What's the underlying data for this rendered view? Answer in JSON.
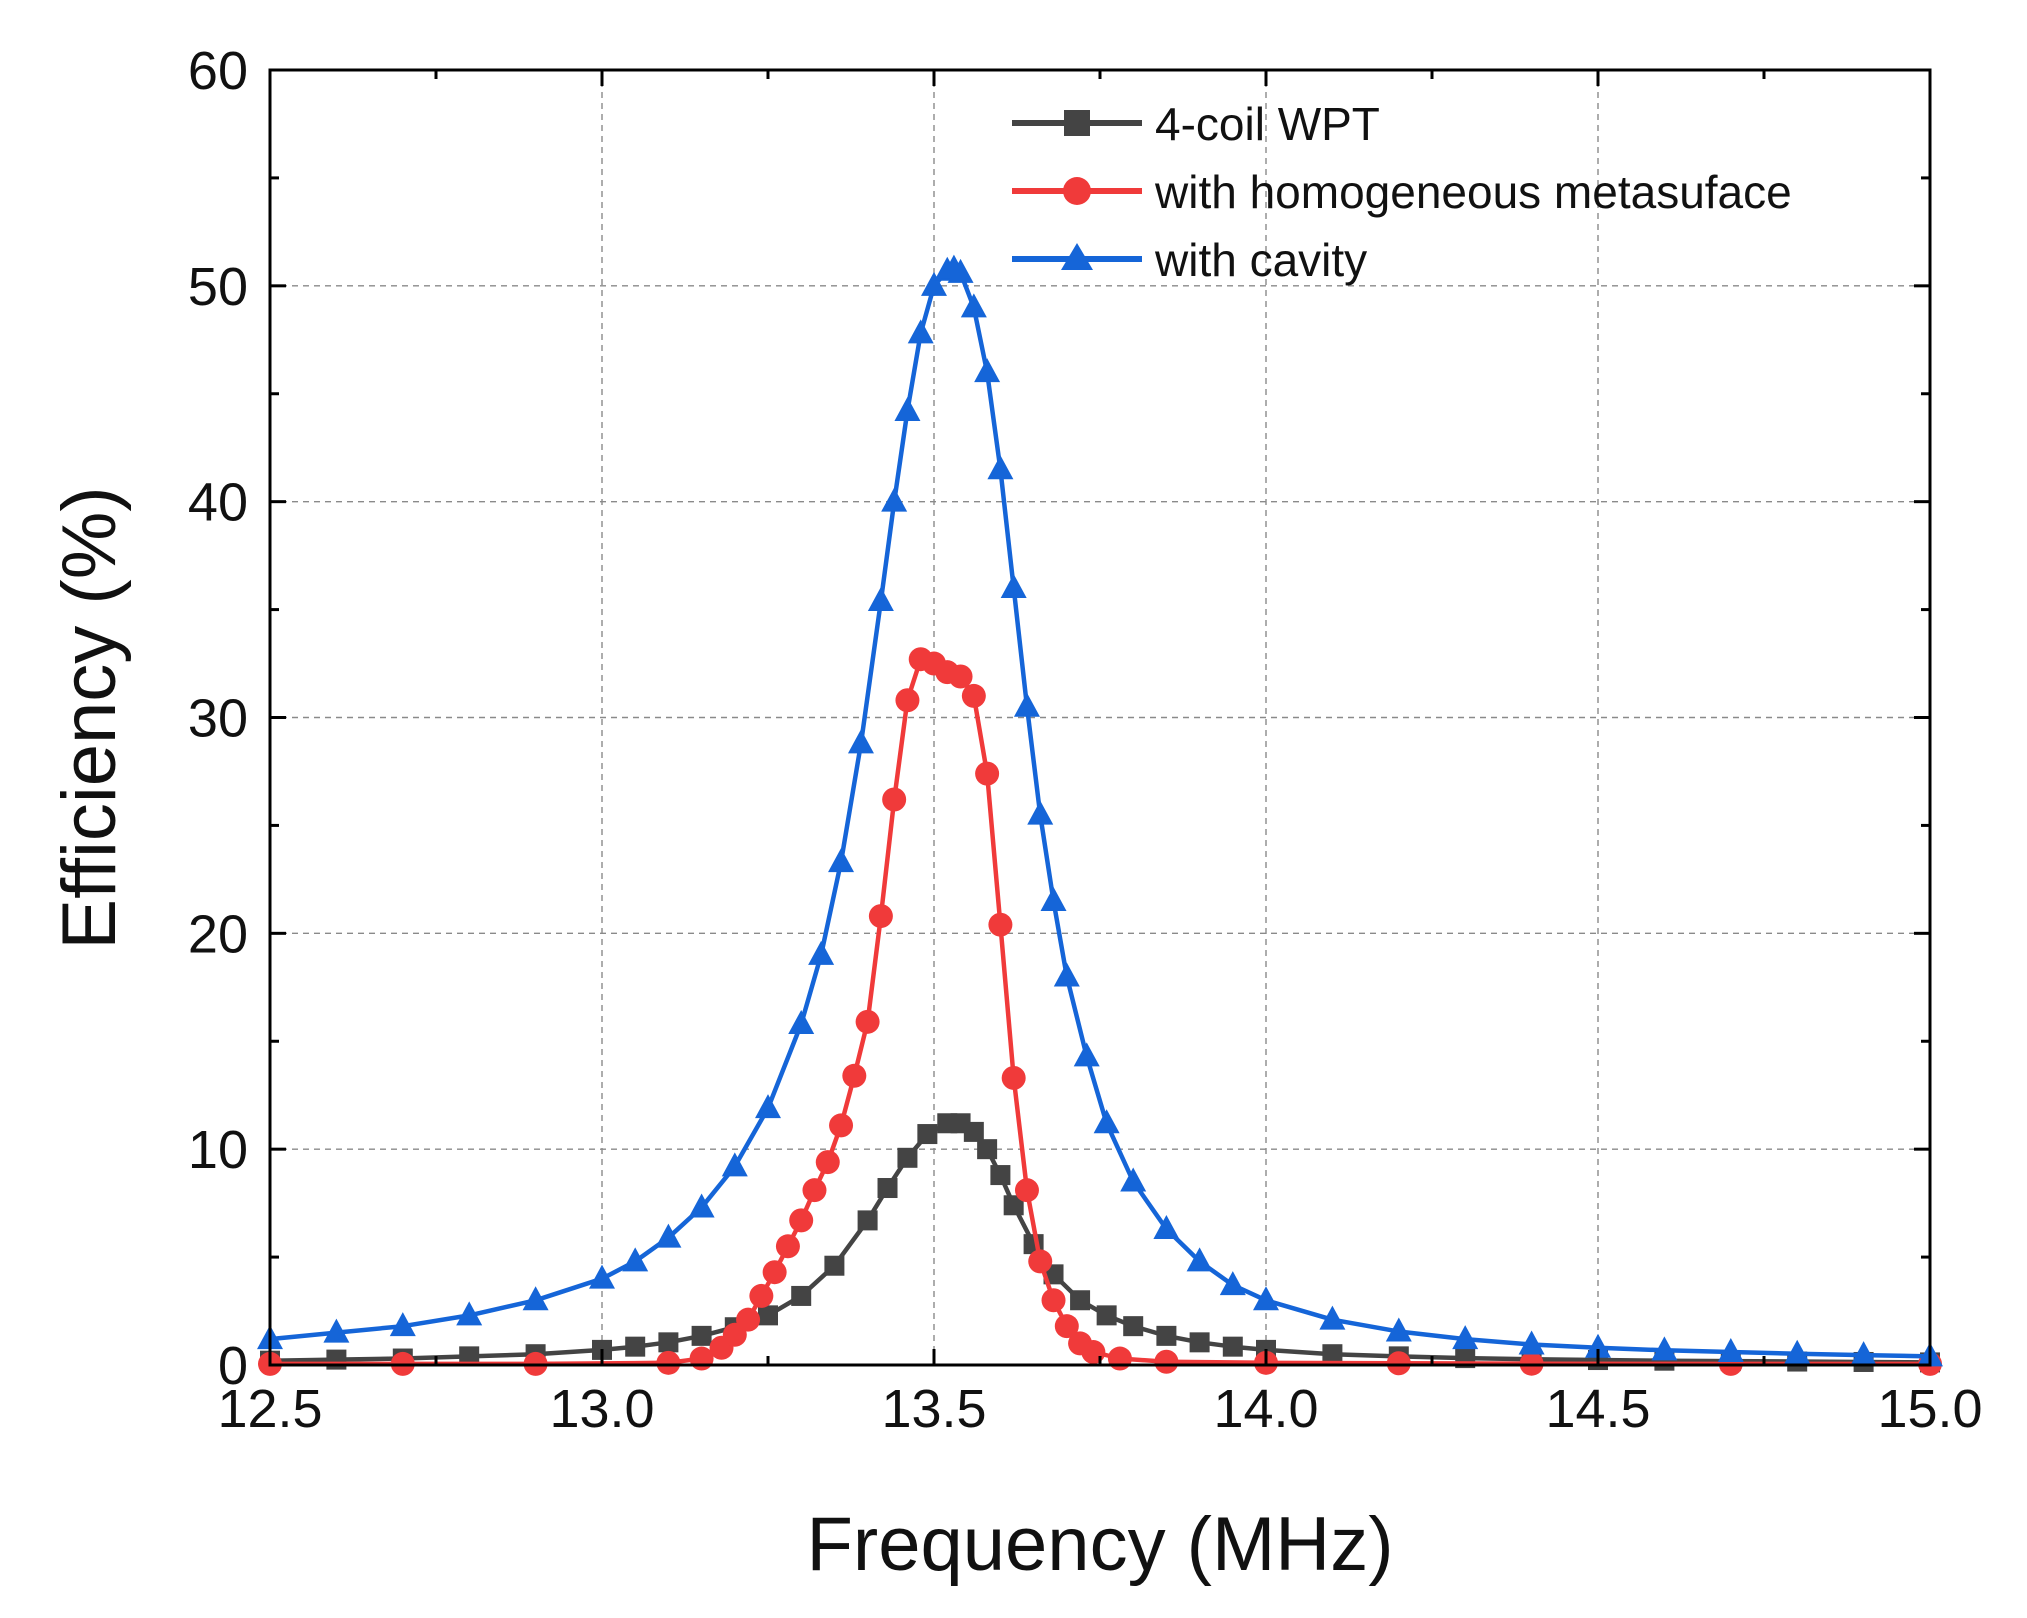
{
  "chart_data": {
    "type": "line",
    "title": "",
    "xlabel": "Frequency (MHz)",
    "ylabel": "Efficiency (%)",
    "xlim": [
      12.5,
      15.0
    ],
    "ylim": [
      0,
      60
    ],
    "xticks": [
      "12.5",
      "13.0",
      "13.5",
      "14.0",
      "14.5",
      "15.0"
    ],
    "yticks": [
      "0",
      "10",
      "20",
      "30",
      "40",
      "50",
      "60"
    ],
    "grid": true,
    "legend_position": "top-right",
    "series": [
      {
        "name": "4-coil WPT",
        "color": "#444444",
        "marker": "square",
        "x": [
          12.5,
          12.6,
          12.7,
          12.8,
          12.9,
          13.0,
          13.05,
          13.1,
          13.15,
          13.2,
          13.25,
          13.3,
          13.35,
          13.4,
          13.43,
          13.46,
          13.49,
          13.52,
          13.54,
          13.56,
          13.58,
          13.6,
          13.62,
          13.65,
          13.68,
          13.72,
          13.76,
          13.8,
          13.85,
          13.9,
          13.95,
          14.0,
          14.1,
          14.2,
          14.3,
          14.4,
          14.5,
          14.6,
          14.7,
          14.8,
          14.9,
          15.0
        ],
        "values": [
          0.2,
          0.25,
          0.3,
          0.4,
          0.5,
          0.7,
          0.85,
          1.05,
          1.35,
          1.75,
          2.3,
          3.2,
          4.6,
          6.7,
          8.2,
          9.6,
          10.7,
          11.2,
          11.2,
          10.8,
          10.0,
          8.8,
          7.4,
          5.6,
          4.2,
          3.0,
          2.3,
          1.8,
          1.35,
          1.05,
          0.85,
          0.7,
          0.5,
          0.4,
          0.32,
          0.27,
          0.23,
          0.2,
          0.18,
          0.16,
          0.14,
          0.12
        ]
      },
      {
        "name": "with homogeneous metasuface",
        "color": "#f03a3a",
        "marker": "circle",
        "x": [
          12.5,
          12.7,
          12.9,
          13.1,
          13.15,
          13.18,
          13.2,
          13.22,
          13.24,
          13.26,
          13.28,
          13.3,
          13.32,
          13.34,
          13.36,
          13.38,
          13.4,
          13.42,
          13.44,
          13.46,
          13.48,
          13.5,
          13.52,
          13.54,
          13.56,
          13.58,
          13.6,
          13.62,
          13.64,
          13.66,
          13.68,
          13.7,
          13.72,
          13.74,
          13.78,
          13.85,
          14.0,
          14.2,
          14.4,
          14.7,
          15.0
        ],
        "values": [
          0.05,
          0.05,
          0.05,
          0.1,
          0.3,
          0.8,
          1.4,
          2.1,
          3.2,
          4.3,
          5.5,
          6.7,
          8.1,
          9.4,
          11.1,
          13.4,
          15.9,
          20.8,
          26.2,
          30.8,
          32.7,
          32.5,
          32.1,
          31.9,
          31.0,
          27.4,
          20.4,
          13.3,
          8.1,
          4.8,
          3.0,
          1.8,
          1.0,
          0.6,
          0.3,
          0.15,
          0.1,
          0.08,
          0.06,
          0.05,
          0.05
        ]
      },
      {
        "name": "with cavity",
        "color": "#1565d8",
        "marker": "triangle",
        "x": [
          12.5,
          12.6,
          12.7,
          12.8,
          12.9,
          13.0,
          13.05,
          13.1,
          13.15,
          13.2,
          13.25,
          13.3,
          13.33,
          13.36,
          13.39,
          13.42,
          13.44,
          13.46,
          13.48,
          13.5,
          13.52,
          13.53,
          13.54,
          13.56,
          13.58,
          13.6,
          13.62,
          13.64,
          13.66,
          13.68,
          13.7,
          13.73,
          13.76,
          13.8,
          13.85,
          13.9,
          13.95,
          14.0,
          14.1,
          14.2,
          14.3,
          14.4,
          14.5,
          14.6,
          14.7,
          14.8,
          14.9,
          15.0
        ],
        "values": [
          1.2,
          1.5,
          1.8,
          2.3,
          3.0,
          4.0,
          4.8,
          5.9,
          7.3,
          9.2,
          11.9,
          15.8,
          19.0,
          23.3,
          28.8,
          35.4,
          40.0,
          44.2,
          47.8,
          50.0,
          50.7,
          50.8,
          50.6,
          49.0,
          46.0,
          41.5,
          36.0,
          30.5,
          25.5,
          21.5,
          18.0,
          14.3,
          11.2,
          8.5,
          6.3,
          4.8,
          3.7,
          3.0,
          2.1,
          1.55,
          1.2,
          0.95,
          0.8,
          0.68,
          0.6,
          0.52,
          0.46,
          0.4
        ]
      }
    ]
  }
}
